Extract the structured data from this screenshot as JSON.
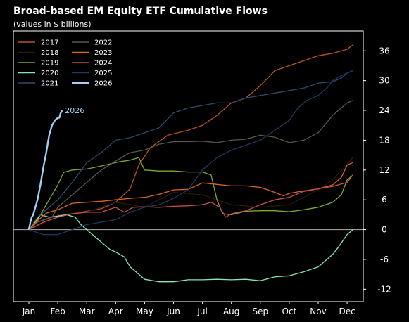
{
  "chart_data": {
    "type": "line",
    "title": "Broad-based EM Equity ETF Cumulative Flows",
    "subtitle": "(values in $ billions)",
    "xlabel": "",
    "ylabel": "",
    "x_ticks": [
      "Jan",
      "Feb",
      "Mar",
      "Apr",
      "May",
      "Jun",
      "Jul",
      "Aug",
      "Sep",
      "Oct",
      "Nov",
      "Dec"
    ],
    "y_ticks": [
      -12,
      -6,
      0,
      6,
      12,
      18,
      24,
      30,
      36
    ],
    "ylim": [
      -14.5,
      40
    ],
    "y_axis_side": "right",
    "zero_line": true,
    "legend_position": "top-left",
    "annotation": {
      "text": "2026",
      "series": "2026"
    },
    "series": [
      {
        "name": "2017",
        "color": "#b8551f",
        "values": [
          [
            0,
            0
          ],
          [
            0.3,
            1.5
          ],
          [
            0.8,
            2.6
          ],
          [
            1.5,
            3.2
          ],
          [
            2.5,
            4.2
          ],
          [
            3,
            5.5
          ],
          [
            3.5,
            8.2
          ],
          [
            3.8,
            13
          ],
          [
            4.2,
            16.5
          ],
          [
            4.8,
            19
          ],
          [
            5.5,
            20
          ],
          [
            6,
            21
          ],
          [
            6.5,
            23
          ],
          [
            7,
            25.5
          ],
          [
            7.5,
            26.5
          ],
          [
            8,
            29
          ],
          [
            8.5,
            32
          ],
          [
            9,
            33
          ],
          [
            9.5,
            34
          ],
          [
            10,
            35
          ],
          [
            10.5,
            35.5
          ],
          [
            11,
            36.3
          ],
          [
            11.2,
            37.2
          ]
        ]
      },
      {
        "name": "2018",
        "color": "#2a1710",
        "values": [
          [
            0,
            0
          ],
          [
            0.5,
            1.2
          ],
          [
            1,
            3
          ],
          [
            2,
            3.5
          ],
          [
            3,
            5.5
          ],
          [
            4,
            4.5
          ],
          [
            5,
            7.5
          ],
          [
            6,
            7
          ],
          [
            7,
            5
          ],
          [
            8,
            4.5
          ],
          [
            9,
            5
          ],
          [
            10,
            8
          ],
          [
            10.5,
            10
          ],
          [
            11,
            13.2
          ],
          [
            11.2,
            14.5
          ]
        ]
      },
      {
        "name": "2019",
        "color": "#7ea835",
        "values": [
          [
            0,
            0
          ],
          [
            0.3,
            2
          ],
          [
            0.6,
            5
          ],
          [
            1,
            9
          ],
          [
            1.2,
            11.5
          ],
          [
            1.5,
            12
          ],
          [
            2,
            12.2
          ],
          [
            2.5,
            12.8
          ],
          [
            3,
            13.5
          ],
          [
            3.5,
            14
          ],
          [
            3.8,
            14.5
          ],
          [
            4,
            12
          ],
          [
            4.5,
            11.8
          ],
          [
            5,
            11.8
          ],
          [
            5.5,
            11.6
          ],
          [
            6,
            11.6
          ],
          [
            6.3,
            11
          ],
          [
            6.5,
            6
          ],
          [
            6.7,
            3.2
          ],
          [
            7,
            3
          ],
          [
            7.5,
            3.7
          ],
          [
            8,
            3.8
          ],
          [
            8.5,
            3.8
          ],
          [
            9,
            3.6
          ],
          [
            9.5,
            4
          ],
          [
            10,
            4.5
          ],
          [
            10.5,
            5.5
          ],
          [
            10.8,
            7
          ],
          [
            11,
            10
          ],
          [
            11.2,
            11
          ]
        ]
      },
      {
        "name": "2020",
        "color": "#85e5b5",
        "values": [
          [
            0,
            0
          ],
          [
            0.2,
            1.5
          ],
          [
            0.4,
            3
          ],
          [
            0.7,
            2.5
          ],
          [
            1,
            2.7
          ],
          [
            1.3,
            3
          ],
          [
            1.6,
            2.5
          ],
          [
            1.8,
            1
          ],
          [
            2,
            0
          ],
          [
            2.3,
            -1.5
          ],
          [
            2.6,
            -3
          ],
          [
            2.8,
            -4
          ],
          [
            3,
            -4.5
          ],
          [
            3.3,
            -5.5
          ],
          [
            3.5,
            -7.5
          ],
          [
            3.7,
            -8.5
          ],
          [
            4,
            -10
          ],
          [
            4.5,
            -10.5
          ],
          [
            5,
            -10.5
          ],
          [
            5.5,
            -10.1
          ],
          [
            6,
            -10.1
          ],
          [
            6.5,
            -10
          ],
          [
            7,
            -10.1
          ],
          [
            7.5,
            -10
          ],
          [
            8,
            -10.3
          ],
          [
            8.5,
            -9.5
          ],
          [
            9,
            -9.3
          ],
          [
            9.5,
            -8.5
          ],
          [
            10,
            -7.5
          ],
          [
            10.3,
            -6
          ],
          [
            10.5,
            -5
          ],
          [
            10.7,
            -3.5
          ],
          [
            11,
            -1
          ],
          [
            11.2,
            0
          ]
        ]
      },
      {
        "name": "2021",
        "color": "#2c4a6b",
        "values": [
          [
            0,
            0
          ],
          [
            0.3,
            2.5
          ],
          [
            0.7,
            4.5
          ],
          [
            1,
            6
          ],
          [
            1.5,
            9.5
          ],
          [
            2,
            13.5
          ],
          [
            2.5,
            15.5
          ],
          [
            3,
            18
          ],
          [
            3.5,
            18.5
          ],
          [
            4,
            19.5
          ],
          [
            4.5,
            20.5
          ],
          [
            5,
            23.5
          ],
          [
            5.5,
            24.5
          ],
          [
            6,
            25
          ],
          [
            6.5,
            25.5
          ],
          [
            7,
            25.5
          ],
          [
            7.5,
            26.5
          ],
          [
            8,
            27
          ],
          [
            8.5,
            27.5
          ],
          [
            9,
            28
          ],
          [
            9.5,
            28.5
          ],
          [
            10,
            29.5
          ],
          [
            10.5,
            29.8
          ],
          [
            10.8,
            30.5
          ],
          [
            11,
            31.5
          ],
          [
            11.2,
            32
          ]
        ]
      },
      {
        "name": "2022",
        "color": "#5a5650",
        "values": [
          [
            0,
            0
          ],
          [
            0.3,
            1.5
          ],
          [
            0.8,
            2.5
          ],
          [
            1,
            4.5
          ],
          [
            1.5,
            7
          ],
          [
            2,
            9.5
          ],
          [
            2.5,
            12
          ],
          [
            3,
            13.8
          ],
          [
            3.5,
            15.5
          ],
          [
            4,
            16
          ],
          [
            4.5,
            17.2
          ],
          [
            5,
            17.7
          ],
          [
            5.5,
            17.7
          ],
          [
            6,
            17.8
          ],
          [
            6.5,
            17.5
          ],
          [
            7,
            18
          ],
          [
            7.5,
            18.2
          ],
          [
            8,
            19
          ],
          [
            8.5,
            18.6
          ],
          [
            9,
            17.5
          ],
          [
            9.5,
            18
          ],
          [
            10,
            19.5
          ],
          [
            10.5,
            23
          ],
          [
            10.8,
            24.5
          ],
          [
            11,
            25.5
          ],
          [
            11.2,
            26
          ]
        ]
      },
      {
        "name": "2023",
        "color": "#d9651e",
        "values": [
          [
            0,
            0
          ],
          [
            0.3,
            1.8
          ],
          [
            0.6,
            3.3
          ],
          [
            1,
            4
          ],
          [
            1.5,
            5.3
          ],
          [
            2,
            5.5
          ],
          [
            2.5,
            5.7
          ],
          [
            3,
            6
          ],
          [
            3.5,
            6.3
          ],
          [
            4,
            6.5
          ],
          [
            4.5,
            7.1
          ],
          [
            5,
            8
          ],
          [
            5.5,
            8.1
          ],
          [
            6,
            9.4
          ],
          [
            6.5,
            9.1
          ],
          [
            7,
            8.8
          ],
          [
            7.5,
            8.8
          ],
          [
            8,
            8.5
          ],
          [
            8.5,
            7.5
          ],
          [
            8.8,
            6.8
          ],
          [
            9,
            7.3
          ],
          [
            9.5,
            7.8
          ],
          [
            10,
            8.2
          ],
          [
            10.5,
            9
          ],
          [
            10.8,
            10.5
          ],
          [
            11,
            13
          ],
          [
            11.2,
            13.5
          ]
        ]
      },
      {
        "name": "2024",
        "color": "#c95050",
        "values": [
          [
            0,
            0
          ],
          [
            0.5,
            1.5
          ],
          [
            1,
            2.5
          ],
          [
            1.5,
            3.2
          ],
          [
            2,
            3.5
          ],
          [
            2.5,
            3.5
          ],
          [
            3,
            4.5
          ],
          [
            3.3,
            3.5
          ],
          [
            3.6,
            4.5
          ],
          [
            4,
            4.6
          ],
          [
            4.5,
            4.5
          ],
          [
            5,
            4.7
          ],
          [
            5.5,
            4.8
          ],
          [
            6,
            5
          ],
          [
            6.3,
            5.5
          ],
          [
            6.6,
            4.5
          ],
          [
            6.8,
            2.5
          ],
          [
            7,
            3.2
          ],
          [
            7.5,
            3.8
          ],
          [
            8,
            5
          ],
          [
            8.5,
            6
          ],
          [
            9,
            6.5
          ],
          [
            9.5,
            7.7
          ],
          [
            10,
            8.2
          ],
          [
            10.5,
            8.7
          ],
          [
            11,
            9.5
          ],
          [
            11.2,
            11
          ]
        ]
      },
      {
        "name": "2025",
        "color": "#1e3a5f",
        "values": [
          [
            0,
            0
          ],
          [
            0.5,
            -1
          ],
          [
            1,
            -1
          ],
          [
            1.5,
            0
          ],
          [
            2,
            1
          ],
          [
            2.5,
            1.5
          ],
          [
            3,
            2
          ],
          [
            3.5,
            3.5
          ],
          [
            4,
            4.5
          ],
          [
            4.5,
            5
          ],
          [
            5,
            6.3
          ],
          [
            5.5,
            8
          ],
          [
            6,
            12
          ],
          [
            6.5,
            14.5
          ],
          [
            7,
            16
          ],
          [
            7.5,
            17
          ],
          [
            8,
            18
          ],
          [
            8.5,
            20
          ],
          [
            9,
            22
          ],
          [
            9.3,
            24.5
          ],
          [
            9.6,
            26
          ],
          [
            10,
            27
          ],
          [
            10.3,
            28.5
          ],
          [
            10.5,
            30
          ],
          [
            10.8,
            31
          ],
          [
            11,
            31.5
          ],
          [
            11.2,
            32
          ]
        ]
      },
      {
        "name": "2026",
        "color": "#9fd0f5",
        "values": [
          [
            0,
            0
          ],
          [
            0.05,
            1.5
          ],
          [
            0.1,
            2.5
          ],
          [
            0.15,
            3
          ],
          [
            0.2,
            4
          ],
          [
            0.3,
            6
          ],
          [
            0.4,
            9
          ],
          [
            0.5,
            12.5
          ],
          [
            0.6,
            15.5
          ],
          [
            0.7,
            19
          ],
          [
            0.8,
            21
          ],
          [
            0.9,
            22
          ],
          [
            1,
            22.5
          ],
          [
            1.05,
            22.5
          ],
          [
            1.1,
            23.5
          ],
          [
            1.15,
            24
          ]
        ]
      }
    ]
  }
}
